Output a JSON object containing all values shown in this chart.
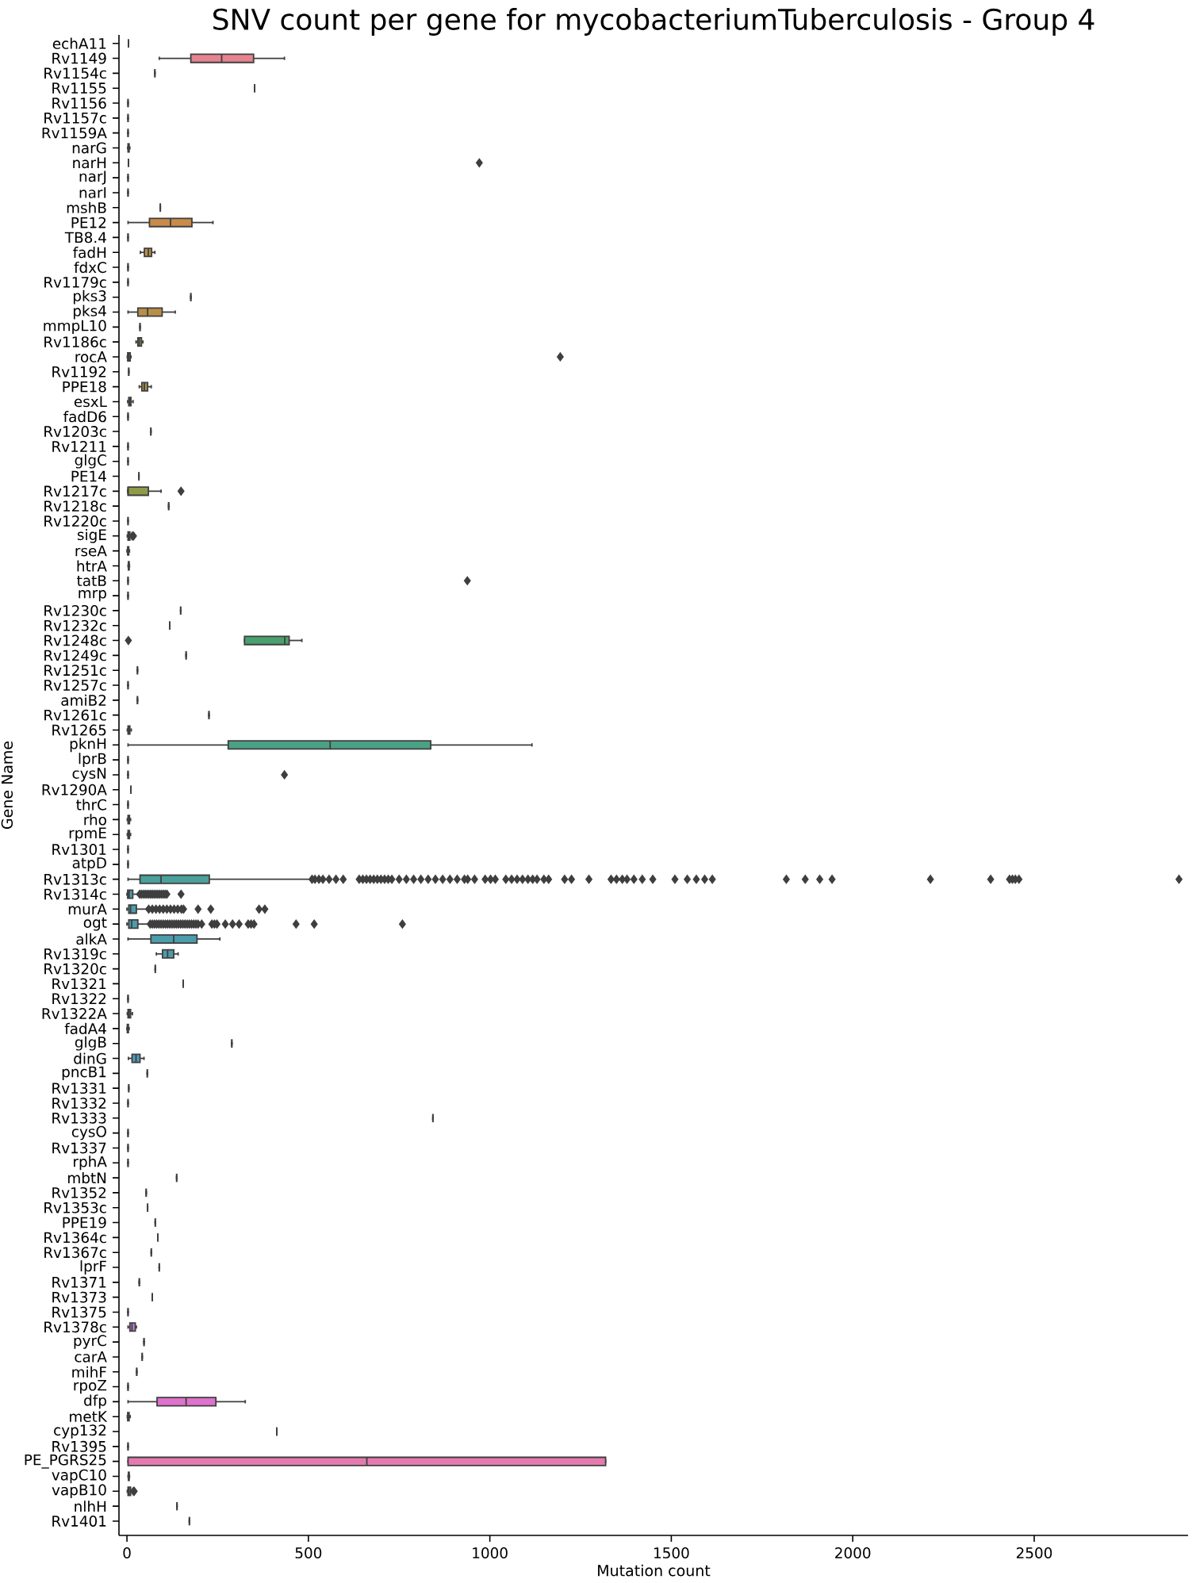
{
  "chart_data": {
    "type": "box",
    "title": "SNV count per gene for mycobacteriumTuberculosis - Group 4",
    "xlabel": "Mutation count",
    "ylabel": "Gene Name",
    "orientation": "horizontal",
    "marker": "diamond",
    "xlim": [
      -22,
      2924
    ],
    "xticks": [
      0,
      500,
      1000,
      1500,
      2000,
      2500
    ],
    "categories": [
      "echA11",
      "Rv1149",
      "Rv1154c",
      "Rv1155",
      "Rv1156",
      "Rv1157c",
      "Rv1159A",
      "narG",
      "narH",
      "narJ",
      "narI",
      "mshB",
      "PE12",
      "TB8.4",
      "fadH",
      "fdxC",
      "Rv1179c",
      "pks3",
      "pks4",
      "mmpL10",
      "Rv1186c",
      "rocA",
      "Rv1192",
      "PPE18",
      "esxL",
      "fadD6",
      "Rv1203c",
      "Rv1211",
      "glgC",
      "PE14",
      "Rv1217c",
      "Rv1218c",
      "Rv1220c",
      "sigE",
      "rseA",
      "htrA",
      "tatB",
      "mrp",
      "Rv1230c",
      "Rv1232c",
      "Rv1248c",
      "Rv1249c",
      "Rv1251c",
      "Rv1257c",
      "amiB2",
      "Rv1261c",
      "Rv1265",
      "pknH",
      "lprB",
      "cysN",
      "Rv1290A",
      "thrC",
      "rho",
      "rpmE",
      "Rv1301",
      "atpD",
      "Rv1313c",
      "Rv1314c",
      "murA",
      "ogt",
      "alkA",
      "Rv1319c",
      "Rv1320c",
      "Rv1321",
      "Rv1322",
      "Rv1322A",
      "fadA4",
      "glgB",
      "dinG",
      "pncB1",
      "Rv1331",
      "Rv1332",
      "Rv1333",
      "cysO",
      "Rv1337",
      "rphA",
      "mbtN",
      "Rv1352",
      "Rv1353c",
      "PPE19",
      "Rv1364c",
      "Rv1367c",
      "lprF",
      "Rv1371",
      "Rv1373",
      "Rv1375",
      "Rv1378c",
      "pyrC",
      "carA",
      "mihF",
      "rpoZ",
      "dfp",
      "metK",
      "cyp132",
      "Rv1395",
      "PE_PGRS25",
      "vapC10",
      "vapB10",
      "nlhH",
      "Rv1401"
    ],
    "colors": [
      null,
      "#e68390",
      null,
      null,
      null,
      null,
      null,
      "#c98b4a",
      null,
      null,
      null,
      null,
      "#c98b4a",
      null,
      "#b88f48",
      null,
      null,
      null,
      "#b88f48",
      null,
      "#a49548",
      "#a49548",
      null,
      "#a49548",
      "#a49548",
      null,
      null,
      null,
      null,
      null,
      "#8f9b48",
      null,
      null,
      "#6f9f47",
      "#6f9f47",
      "#6f9f47",
      null,
      null,
      null,
      null,
      "#4aa06f",
      null,
      null,
      null,
      null,
      null,
      "#4aa186",
      "#4aa186",
      null,
      null,
      null,
      null,
      "#4aa09a",
      "#4aa09a",
      null,
      null,
      "#4aa09a",
      "#4c9dab",
      "#4c9dab",
      "#4c9dab",
      "#4c9dab",
      "#4c9dab",
      null,
      null,
      null,
      "#4f9bbd",
      "#4f9bbd",
      null,
      "#4f9bbd",
      null,
      null,
      null,
      null,
      null,
      null,
      null,
      null,
      null,
      null,
      null,
      null,
      null,
      null,
      null,
      null,
      null,
      "#c283d8",
      null,
      null,
      null,
      null,
      "#de72cc",
      "#de72cc",
      null,
      null,
      "#e47aaf",
      "#e47aaf",
      "#e47aaf",
      null,
      null
    ],
    "boxes": [
      {
        "low": 4,
        "q1": 4,
        "median": 4,
        "q3": 4,
        "high": 4
      },
      {
        "low": 89,
        "q1": 176,
        "median": 261,
        "q3": 349,
        "high": 434
      },
      {
        "low": 77,
        "q1": 77,
        "median": 77,
        "q3": 77,
        "high": 77
      },
      {
        "low": 352,
        "q1": 352,
        "median": 352,
        "q3": 352,
        "high": 352
      },
      {
        "low": 3,
        "q1": 3,
        "median": 3,
        "q3": 3,
        "high": 3
      },
      {
        "low": 3,
        "q1": 3,
        "median": 3,
        "q3": 3,
        "high": 3
      },
      {
        "low": 3,
        "q1": 3,
        "median": 3,
        "q3": 3,
        "high": 3
      },
      {
        "low": 2,
        "q1": 3,
        "median": 4,
        "q3": 6,
        "high": 8
      },
      {
        "low": 4,
        "q1": 4,
        "median": 4,
        "q3": 4,
        "high": 4,
        "outliers": [
          971
        ]
      },
      {
        "low": 3,
        "q1": 3,
        "median": 3,
        "q3": 3,
        "high": 3
      },
      {
        "low": 3,
        "q1": 3,
        "median": 3,
        "q3": 3,
        "high": 3
      },
      {
        "low": 92,
        "q1": 92,
        "median": 92,
        "q3": 92,
        "high": 92
      },
      {
        "low": 3,
        "q1": 62,
        "median": 120,
        "q3": 179,
        "high": 237
      },
      {
        "low": 3,
        "q1": 3,
        "median": 3,
        "q3": 3,
        "high": 3
      },
      {
        "low": 37,
        "q1": 48,
        "median": 59,
        "q3": 68,
        "high": 77
      },
      {
        "low": 3,
        "q1": 3,
        "median": 3,
        "q3": 3,
        "high": 3
      },
      {
        "low": 3,
        "q1": 3,
        "median": 3,
        "q3": 3,
        "high": 3
      },
      {
        "low": 176,
        "q1": 176,
        "median": 176,
        "q3": 176,
        "high": 176
      },
      {
        "low": 3,
        "q1": 30,
        "median": 57,
        "q3": 97,
        "high": 133
      },
      {
        "low": 36,
        "q1": 36,
        "median": 36,
        "q3": 36,
        "high": 36
      },
      {
        "low": 25,
        "q1": 30,
        "median": 34,
        "q3": 40,
        "high": 44
      },
      {
        "low": 1,
        "q1": 2,
        "median": 5,
        "q3": 9,
        "high": 11,
        "outliers": [
          1194
        ]
      },
      {
        "low": 5,
        "q1": 5,
        "median": 5,
        "q3": 5,
        "high": 5
      },
      {
        "low": 34,
        "q1": 41,
        "median": 48,
        "q3": 57,
        "high": 67
      },
      {
        "low": 2,
        "q1": 5,
        "median": 8,
        "q3": 11,
        "high": 17
      },
      {
        "low": 3,
        "q1": 3,
        "median": 3,
        "q3": 3,
        "high": 3
      },
      {
        "low": 66,
        "q1": 66,
        "median": 66,
        "q3": 66,
        "high": 66
      },
      {
        "low": 3,
        "q1": 3,
        "median": 3,
        "q3": 3,
        "high": 3
      },
      {
        "low": 3,
        "q1": 3,
        "median": 3,
        "q3": 3,
        "high": 3
      },
      {
        "low": 33,
        "q1": 33,
        "median": 33,
        "q3": 33,
        "high": 33
      },
      {
        "low": 2,
        "q1": 3,
        "median": 3,
        "q3": 59,
        "high": 94,
        "outliers": [
          149
        ]
      },
      {
        "low": 115,
        "q1": 115,
        "median": 115,
        "q3": 115,
        "high": 115
      },
      {
        "low": 3,
        "q1": 3,
        "median": 3,
        "q3": 3,
        "high": 3
      },
      {
        "low": 1,
        "q1": 3,
        "median": 5,
        "q3": 8,
        "high": 12,
        "outliers": [
          15,
          18
        ]
      },
      {
        "low": 0,
        "q1": 2,
        "median": 3,
        "q3": 5,
        "high": 7
      },
      {
        "low": 3,
        "q1": 4,
        "median": 5,
        "q3": 6,
        "high": 7
      },
      {
        "low": 3,
        "q1": 3,
        "median": 3,
        "q3": 3,
        "high": 3,
        "outliers": [
          938
        ]
      },
      {
        "low": 3,
        "q1": 3,
        "median": 3,
        "q3": 3,
        "high": 3
      },
      {
        "low": 148,
        "q1": 148,
        "median": 148,
        "q3": 148,
        "high": 148
      },
      {
        "low": 118,
        "q1": 118,
        "median": 118,
        "q3": 118,
        "high": 118
      },
      {
        "low": 324,
        "q1": 324,
        "median": 435,
        "q3": 447,
        "high": 482,
        "outliers": [
          4
        ]
      },
      {
        "low": 163,
        "q1": 163,
        "median": 163,
        "q3": 163,
        "high": 163
      },
      {
        "low": 29,
        "q1": 29,
        "median": 29,
        "q3": 29,
        "high": 29
      },
      {
        "low": 3,
        "q1": 3,
        "median": 3,
        "q3": 3,
        "high": 3
      },
      {
        "low": 29,
        "q1": 29,
        "median": 29,
        "q3": 29,
        "high": 29
      },
      {
        "low": 226,
        "q1": 226,
        "median": 226,
        "q3": 226,
        "high": 226
      },
      {
        "low": 1,
        "q1": 3,
        "median": 5,
        "q3": 8,
        "high": 12
      },
      {
        "low": 3,
        "q1": 279,
        "median": 560,
        "q3": 837,
        "high": 1116
      },
      {
        "low": 3,
        "q1": 3,
        "median": 3,
        "q3": 3,
        "high": 3
      },
      {
        "low": 3,
        "q1": 3,
        "median": 3,
        "q3": 3,
        "high": 3,
        "outliers": [
          434
        ]
      },
      {
        "low": 11,
        "q1": 11,
        "median": 11,
        "q3": 11,
        "high": 11
      },
      {
        "low": 3,
        "q1": 3,
        "median": 3,
        "q3": 3,
        "high": 3
      },
      {
        "low": 1,
        "q1": 3,
        "median": 5,
        "q3": 7,
        "high": 10
      },
      {
        "low": 1,
        "q1": 3,
        "median": 5,
        "q3": 7,
        "high": 10
      },
      {
        "low": 3,
        "q1": 3,
        "median": 3,
        "q3": 3,
        "high": 3
      },
      {
        "low": 3,
        "q1": 3,
        "median": 3,
        "q3": 3,
        "high": 3
      },
      {
        "low": 3,
        "q1": 36,
        "median": 94,
        "q3": 227,
        "high": 508,
        "outliers": [
          510,
          518,
          529,
          540,
          557,
          576,
          596,
          640,
          650,
          660,
          670,
          680,
          690,
          700,
          710,
          720,
          730,
          750,
          770,
          790,
          810,
          830,
          850,
          870,
          890,
          910,
          930,
          939,
          958,
          987,
          1002,
          1015,
          1044,
          1060,
          1075,
          1090,
          1105,
          1118,
          1130,
          1149,
          1162,
          1206,
          1225,
          1273,
          1334,
          1349,
          1365,
          1378,
          1397,
          1420,
          1449,
          1510,
          1544,
          1569,
          1592,
          1613,
          1817,
          1869,
          1909,
          1943,
          2214,
          2380,
          2432,
          2440,
          2448,
          2458,
          2899
        ]
      },
      {
        "low": 0,
        "q1": 2,
        "median": 6,
        "q3": 16,
        "high": 30,
        "outliers": [
          35,
          40,
          45,
          50,
          55,
          60,
          65,
          70,
          75,
          80,
          85,
          90,
          95,
          100,
          105,
          110,
          149
        ]
      },
      {
        "low": 0,
        "q1": 5,
        "median": 10,
        "q3": 26,
        "high": 55,
        "outliers": [
          60,
          70,
          80,
          90,
          100,
          110,
          120,
          130,
          140,
          150,
          156,
          196,
          231,
          364,
          380
        ]
      },
      {
        "low": 0,
        "q1": 5,
        "median": 13,
        "q3": 30,
        "high": 60,
        "outliers": [
          64,
          70,
          76,
          82,
          88,
          94,
          100,
          106,
          112,
          118,
          124,
          130,
          136,
          142,
          148,
          154,
          160,
          166,
          172,
          178,
          184,
          190,
          196,
          206,
          234,
          241,
          248,
          271,
          291,
          309,
          334,
          342,
          350,
          466,
          516,
          759
        ]
      },
      {
        "low": 3,
        "q1": 66,
        "median": 129,
        "q3": 193,
        "high": 256
      },
      {
        "low": 81,
        "q1": 98,
        "median": 112,
        "q3": 129,
        "high": 141
      },
      {
        "low": 78,
        "q1": 78,
        "median": 78,
        "q3": 78,
        "high": 78
      },
      {
        "low": 155,
        "q1": 155,
        "median": 155,
        "q3": 155,
        "high": 155
      },
      {
        "low": 3,
        "q1": 3,
        "median": 3,
        "q3": 3,
        "high": 3
      },
      {
        "low": 1,
        "q1": 3,
        "median": 6,
        "q3": 10,
        "high": 15
      },
      {
        "low": 0,
        "q1": 1,
        "median": 2,
        "q3": 4,
        "high": 6
      },
      {
        "low": 289,
        "q1": 289,
        "median": 289,
        "q3": 289,
        "high": 289
      },
      {
        "low": 4,
        "q1": 14,
        "median": 25,
        "q3": 36,
        "high": 47
      },
      {
        "low": 56,
        "q1": 56,
        "median": 56,
        "q3": 56,
        "high": 56
      },
      {
        "low": 5,
        "q1": 5,
        "median": 5,
        "q3": 5,
        "high": 5
      },
      {
        "low": 3,
        "q1": 3,
        "median": 3,
        "q3": 3,
        "high": 3
      },
      {
        "low": 843,
        "q1": 843,
        "median": 843,
        "q3": 843,
        "high": 843
      },
      {
        "low": 3,
        "q1": 3,
        "median": 3,
        "q3": 3,
        "high": 3
      },
      {
        "low": 3,
        "q1": 3,
        "median": 3,
        "q3": 3,
        "high": 3
      },
      {
        "low": 3,
        "q1": 3,
        "median": 3,
        "q3": 3,
        "high": 3
      },
      {
        "low": 137,
        "q1": 137,
        "median": 137,
        "q3": 137,
        "high": 137
      },
      {
        "low": 53,
        "q1": 53,
        "median": 53,
        "q3": 53,
        "high": 53
      },
      {
        "low": 57,
        "q1": 57,
        "median": 57,
        "q3": 57,
        "high": 57
      },
      {
        "low": 78,
        "q1": 78,
        "median": 78,
        "q3": 78,
        "high": 78
      },
      {
        "low": 85,
        "q1": 85,
        "median": 85,
        "q3": 85,
        "high": 85
      },
      {
        "low": 67,
        "q1": 67,
        "median": 67,
        "q3": 67,
        "high": 67
      },
      {
        "low": 89,
        "q1": 89,
        "median": 89,
        "q3": 89,
        "high": 89
      },
      {
        "low": 34,
        "q1": 34,
        "median": 34,
        "q3": 34,
        "high": 34
      },
      {
        "low": 70,
        "q1": 70,
        "median": 70,
        "q3": 70,
        "high": 70
      },
      {
        "low": 3,
        "q1": 3,
        "median": 3,
        "q3": 3,
        "high": 3
      },
      {
        "low": 3,
        "q1": 8,
        "median": 14,
        "q3": 23,
        "high": 26
      },
      {
        "low": 47,
        "q1": 47,
        "median": 47,
        "q3": 47,
        "high": 47
      },
      {
        "low": 42,
        "q1": 42,
        "median": 42,
        "q3": 42,
        "high": 42
      },
      {
        "low": 27,
        "q1": 27,
        "median": 27,
        "q3": 27,
        "high": 27
      },
      {
        "low": 3,
        "q1": 3,
        "median": 3,
        "q3": 3,
        "high": 3
      },
      {
        "low": 3,
        "q1": 83,
        "median": 163,
        "q3": 245,
        "high": 326
      },
      {
        "low": 1,
        "q1": 2,
        "median": 4,
        "q3": 6,
        "high": 9
      },
      {
        "low": 413,
        "q1": 413,
        "median": 413,
        "q3": 413,
        "high": 413
      },
      {
        "low": 3,
        "q1": 3,
        "median": 3,
        "q3": 3,
        "high": 3
      },
      {
        "low": 3,
        "q1": 3,
        "median": 661,
        "q3": 1319,
        "high": 1319
      },
      {
        "low": 3,
        "q1": 4,
        "median": 5,
        "q3": 6,
        "high": 7
      },
      {
        "low": 1,
        "q1": 3,
        "median": 6,
        "q3": 10,
        "high": 16,
        "outliers": [
          18,
          20
        ]
      },
      {
        "low": 138,
        "q1": 138,
        "median": 138,
        "q3": 138,
        "high": 138
      },
      {
        "low": 172,
        "q1": 172,
        "median": 172,
        "q3": 172,
        "high": 172
      }
    ]
  }
}
